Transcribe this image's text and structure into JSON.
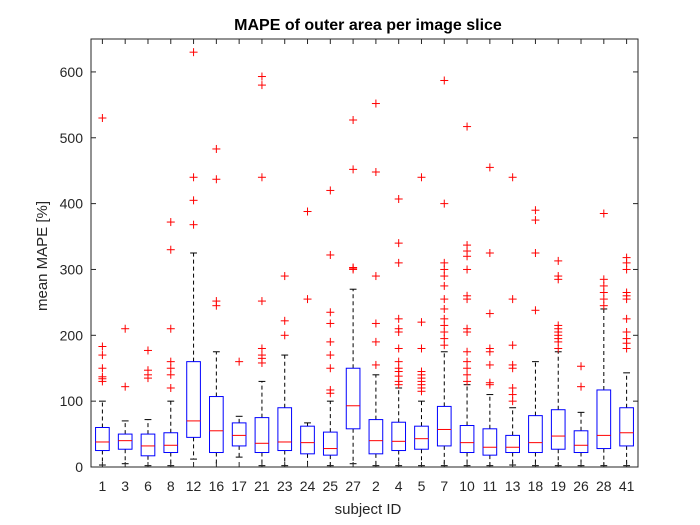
{
  "chart_data": {
    "type": "boxplot",
    "title": "MAPE of outer area per image slice",
    "xlabel": "subject ID",
    "ylabel": "mean MAPE [%]",
    "ylim": [
      0,
      650
    ],
    "yticks": [
      0,
      100,
      200,
      300,
      400,
      500,
      600
    ],
    "grid": false,
    "colors": {
      "box": "#0000ff",
      "median": "#ff0000",
      "whisker": "#000000",
      "outlier": "#ff0000",
      "axis": "#262626"
    },
    "categories": [
      "1",
      "3",
      "6",
      "8",
      "12",
      "16",
      "17",
      "21",
      "23",
      "24",
      "25",
      "27",
      "2",
      "4",
      "5",
      "7",
      "10",
      "11",
      "13",
      "18",
      "19",
      "26",
      "28",
      "41"
    ],
    "boxes": [
      {
        "q1": 25,
        "median": 38,
        "q3": 60,
        "wlow": 3,
        "whigh": 100,
        "outliers": [
          130,
          134,
          137,
          150,
          170,
          183,
          530
        ]
      },
      {
        "q1": 27,
        "median": 40,
        "q3": 50,
        "wlow": 5,
        "whigh": 70,
        "outliers": [
          122,
          210
        ]
      },
      {
        "q1": 17,
        "median": 32,
        "q3": 50,
        "wlow": 2,
        "whigh": 72,
        "outliers": [
          135,
          140,
          147,
          177
        ]
      },
      {
        "q1": 22,
        "median": 33,
        "q3": 52,
        "wlow": 2,
        "whigh": 100,
        "outliers": [
          120,
          140,
          150,
          160,
          210,
          330,
          372
        ]
      },
      {
        "q1": 45,
        "median": 70,
        "q3": 160,
        "wlow": 12,
        "whigh": 325,
        "outliers": [
          368,
          405,
          440,
          630
        ]
      },
      {
        "q1": 22,
        "median": 55,
        "q3": 107,
        "wlow": 0,
        "whigh": 175,
        "outliers": [
          245,
          252,
          437,
          483
        ]
      },
      {
        "q1": 32,
        "median": 48,
        "q3": 67,
        "wlow": 15,
        "whigh": 77,
        "outliers": [
          160
        ]
      },
      {
        "q1": 22,
        "median": 36,
        "q3": 75,
        "wlow": 2,
        "whigh": 130,
        "outliers": [
          158,
          165,
          170,
          180,
          252,
          440,
          580,
          593
        ]
      },
      {
        "q1": 25,
        "median": 38,
        "q3": 90,
        "wlow": 2,
        "whigh": 170,
        "outliers": [
          200,
          222,
          290
        ]
      },
      {
        "q1": 20,
        "median": 37,
        "q3": 62,
        "wlow": 0,
        "whigh": 67,
        "outliers": [
          255,
          388
        ]
      },
      {
        "q1": 18,
        "median": 28,
        "q3": 53,
        "wlow": 2,
        "whigh": 100,
        "outliers": [
          112,
          117,
          150,
          170,
          190,
          218,
          235,
          322,
          420
        ]
      },
      {
        "q1": 58,
        "median": 93,
        "q3": 150,
        "wlow": 5,
        "whigh": 270,
        "outliers": [
          300,
          302,
          303,
          452,
          527
        ]
      },
      {
        "q1": 20,
        "median": 40,
        "q3": 72,
        "wlow": 2,
        "whigh": 140,
        "outliers": [
          155,
          190,
          218,
          290,
          448,
          552
        ]
      },
      {
        "q1": 25,
        "median": 39,
        "q3": 68,
        "wlow": 2,
        "whigh": 120,
        "outliers": [
          125,
          130,
          138,
          145,
          150,
          160,
          180,
          205,
          210,
          225,
          310,
          340,
          407
        ]
      },
      {
        "q1": 27,
        "median": 43,
        "q3": 62,
        "wlow": 2,
        "whigh": 100,
        "outliers": [
          115,
          120,
          125,
          130,
          135,
          140,
          145,
          180,
          220,
          440
        ]
      },
      {
        "q1": 32,
        "median": 57,
        "q3": 92,
        "wlow": 2,
        "whigh": 175,
        "outliers": [
          185,
          195,
          205,
          215,
          225,
          240,
          255,
          275,
          290,
          300,
          310,
          400,
          587
        ]
      },
      {
        "q1": 22,
        "median": 37,
        "q3": 63,
        "wlow": 2,
        "whigh": 125,
        "outliers": [
          130,
          140,
          150,
          160,
          175,
          205,
          210,
          255,
          260,
          300,
          320,
          328,
          337,
          517
        ]
      },
      {
        "q1": 18,
        "median": 30,
        "q3": 58,
        "wlow": 2,
        "whigh": 110,
        "outliers": [
          125,
          128,
          155,
          175,
          180,
          233,
          325,
          455
        ]
      },
      {
        "q1": 22,
        "median": 30,
        "q3": 48,
        "wlow": 3,
        "whigh": 90,
        "outliers": [
          100,
          110,
          120,
          150,
          155,
          185,
          255,
          440
        ]
      },
      {
        "q1": 22,
        "median": 37,
        "q3": 78,
        "wlow": 2,
        "whigh": 160,
        "outliers": [
          238,
          325,
          375,
          390
        ]
      },
      {
        "q1": 27,
        "median": 47,
        "q3": 87,
        "wlow": 2,
        "whigh": 175,
        "outliers": [
          180,
          190,
          195,
          200,
          205,
          210,
          215,
          285,
          290,
          313
        ]
      },
      {
        "q1": 22,
        "median": 33,
        "q3": 55,
        "wlow": 2,
        "whigh": 83,
        "outliers": [
          122,
          153
        ]
      },
      {
        "q1": 28,
        "median": 48,
        "q3": 117,
        "wlow": 2,
        "whigh": 240,
        "outliers": [
          245,
          255,
          265,
          275,
          285,
          385
        ]
      },
      {
        "q1": 32,
        "median": 52,
        "q3": 90,
        "wlow": 2,
        "whigh": 143,
        "outliers": [
          180,
          188,
          195,
          205,
          225,
          255,
          260,
          265,
          300,
          310,
          318
        ]
      }
    ]
  }
}
